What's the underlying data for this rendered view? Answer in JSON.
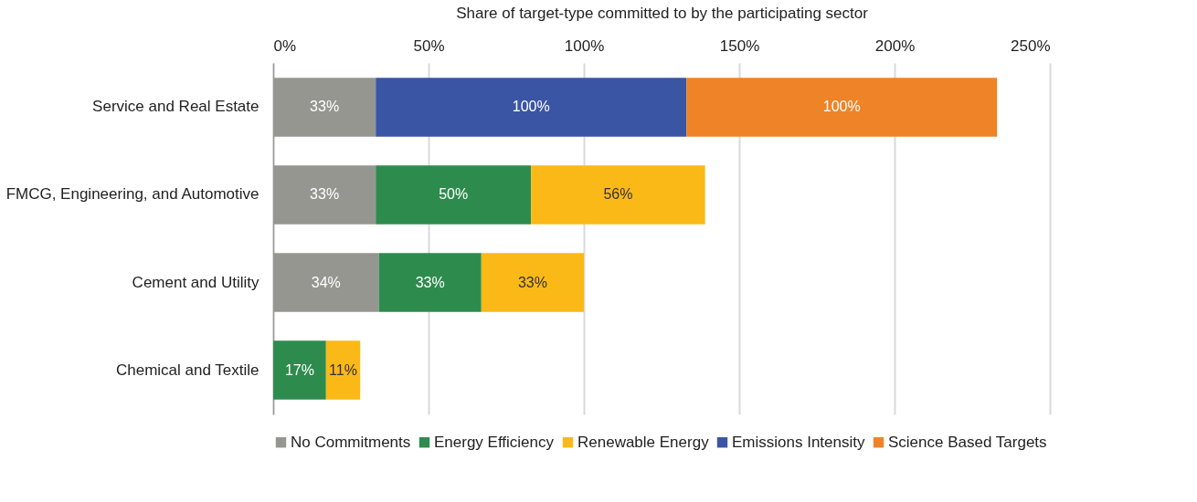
{
  "chart_data": {
    "type": "bar",
    "orientation": "horizontal",
    "stacked": true,
    "xlabel": "Share of target-type committed to by the participating sector",
    "categories": [
      "Service and Real Estate",
      "FMCG, Engineering, and Automotive",
      "Cement and Utility",
      "Chemical and Textile"
    ],
    "series": [
      {
        "name": "No Commitments",
        "color": "#969691",
        "values": [
          33,
          33,
          34,
          null
        ],
        "value_labels": [
          "33%",
          "33%",
          "34%",
          null
        ]
      },
      {
        "name": "Energy Efficiency",
        "color": "#2e8b4e",
        "values": [
          null,
          50,
          33,
          17
        ],
        "value_labels": [
          null,
          "50%",
          "33%",
          "17%"
        ]
      },
      {
        "name": "Renewable Energy",
        "color": "#fbb917",
        "values": [
          null,
          56,
          33,
          11
        ],
        "value_labels": [
          null,
          "56%",
          "33%",
          "11%"
        ]
      },
      {
        "name": "Emissions Intensity",
        "color": "#3b55a5",
        "values": [
          100,
          null,
          null,
          null
        ],
        "value_labels": [
          "100%",
          null,
          null,
          null
        ]
      },
      {
        "name": "Science Based Targets",
        "color": "#ee8427",
        "values": [
          100,
          null,
          null,
          null
        ],
        "value_labels": [
          "100%",
          null,
          null,
          null
        ]
      }
    ],
    "xlim": [
      0,
      250
    ],
    "xticks": [
      {
        "value": 0,
        "label": "0%"
      },
      {
        "value": 50,
        "label": "50%"
      },
      {
        "value": 100,
        "label": "100%"
      },
      {
        "value": 150,
        "label": "150%"
      },
      {
        "value": 200,
        "label": "200%"
      },
      {
        "value": 250,
        "label": "250%"
      }
    ],
    "grid": true,
    "legend": "bottom"
  }
}
